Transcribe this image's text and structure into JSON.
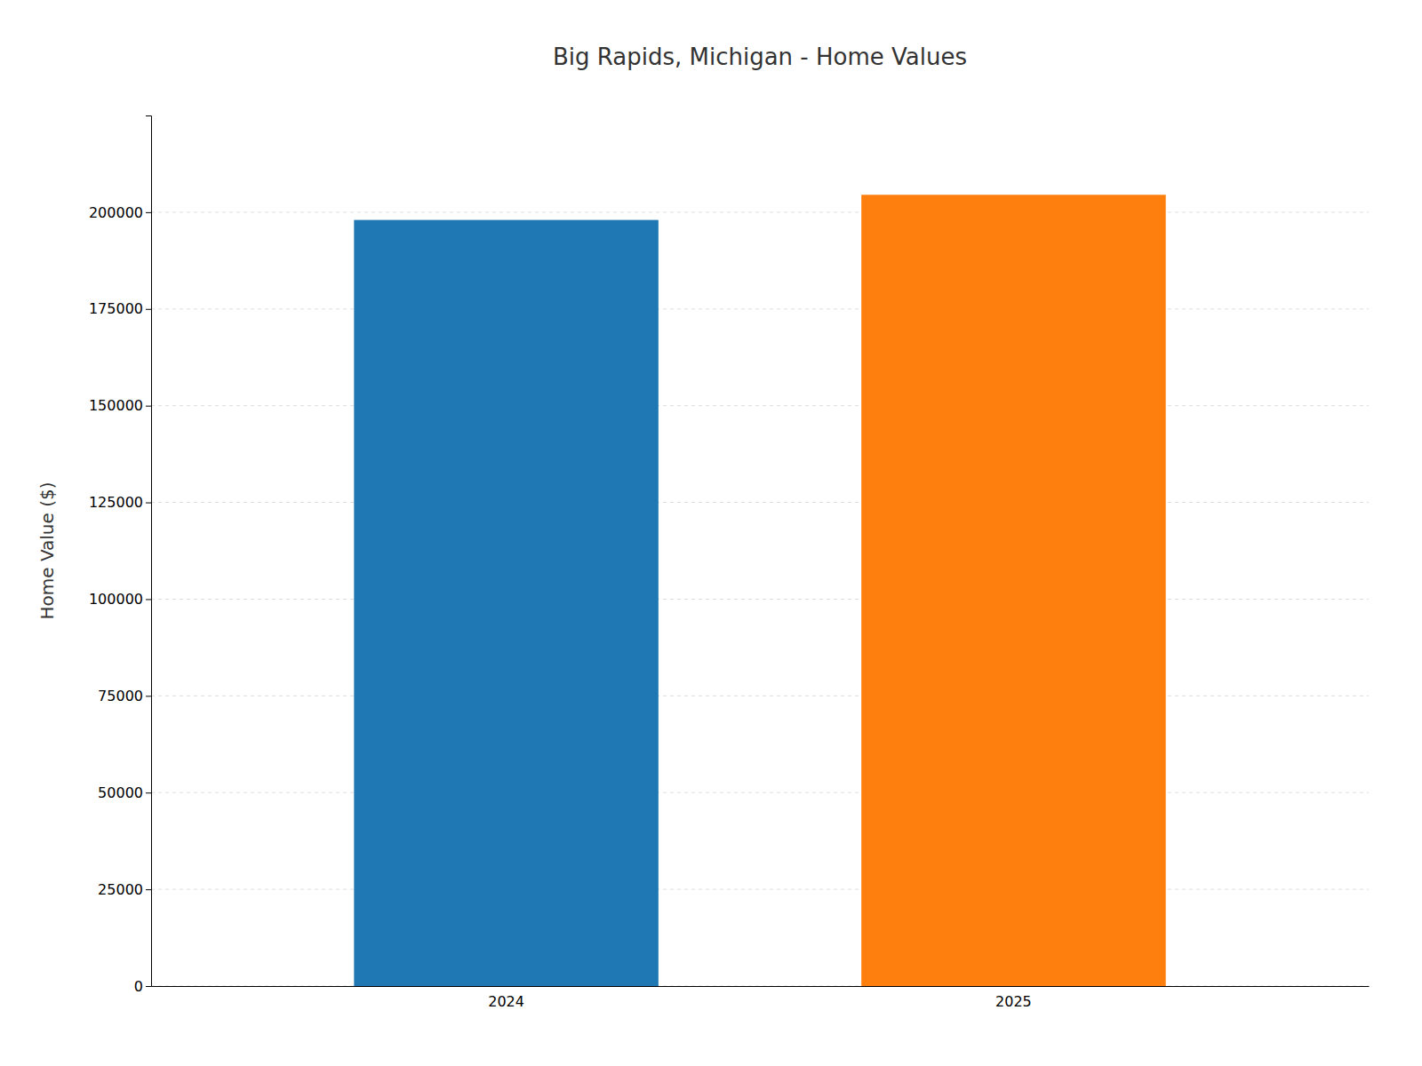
{
  "chart_data": {
    "type": "bar",
    "title": "Big Rapids, Michigan - Home Values",
    "ylabel": "Home Value ($)",
    "categories": [
      "2024",
      "2025"
    ],
    "values": [
      198000,
      204500
    ],
    "ylim": [
      0,
      225000
    ],
    "yticks": [
      0,
      25000,
      50000,
      75000,
      100000,
      125000,
      150000,
      175000,
      200000
    ],
    "grid": true
  }
}
